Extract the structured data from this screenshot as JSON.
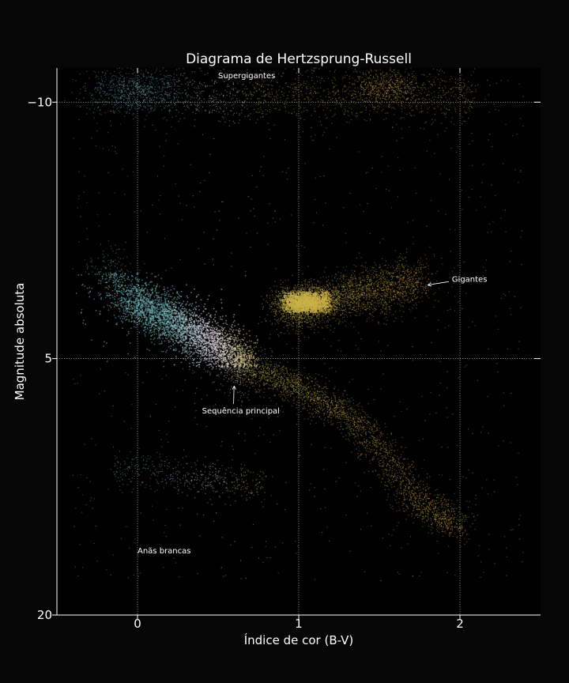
{
  "chart_data": {
    "type": "scatter",
    "title": "Diagrama de Hertzsprung-Russell",
    "xlabel": "Índice de cor (B-V)",
    "ylabel": "Magnitude absoluta",
    "xlim": [
      -0.5,
      2.5
    ],
    "ylim": [
      20,
      -12
    ],
    "y_inverted": true,
    "x_ticks": [
      {
        "value": 0,
        "label": "0"
      },
      {
        "value": 1,
        "label": "1"
      },
      {
        "value": 2,
        "label": "2"
      }
    ],
    "y_ticks": [
      {
        "value": -10,
        "label": "−10"
      },
      {
        "value": 5,
        "label": "5"
      },
      {
        "value": 20,
        "label": "20"
      }
    ],
    "grid": true,
    "background": "#000000",
    "regions": [
      {
        "label": "Supergigantes",
        "bv_range": [
          -0.3,
          2.1
        ],
        "mag_range": [
          -12,
          -9
        ]
      },
      {
        "label": "Gigantes",
        "bv_range": [
          0.85,
          1.8
        ],
        "mag_range": [
          -0.5,
          3.0
        ]
      },
      {
        "label": "Sequência principal",
        "bv_range": [
          -0.3,
          2.0
        ],
        "mag_range": [
          -2,
          15
        ]
      },
      {
        "label": "Anãs brancas",
        "bv_range": [
          -0.2,
          0.8
        ],
        "mag_range": [
          11,
          13
        ]
      }
    ],
    "annotations": [
      {
        "text": "Supergigantes",
        "x": 0.5,
        "y": -11.4,
        "arrow": false
      },
      {
        "text": "Gigantes",
        "x": 1.95,
        "y": 0.5,
        "arrow_to": {
          "x": 1.8,
          "y": 0.7
        }
      },
      {
        "text": "Sequência principal",
        "x": 0.4,
        "y": 8.2,
        "arrow_to": {
          "x": 0.6,
          "y": 6.6
        }
      },
      {
        "text": "Anãs brancas",
        "x": 0.0,
        "y": 16.4,
        "arrow": false
      }
    ],
    "colors": {
      "hot": "#6fb5b9",
      "mid": "#e6dcef",
      "warm": "#c8b850",
      "cool": "#d4a63a",
      "grid": "#cfcfcf",
      "text": "#ffffff"
    }
  }
}
